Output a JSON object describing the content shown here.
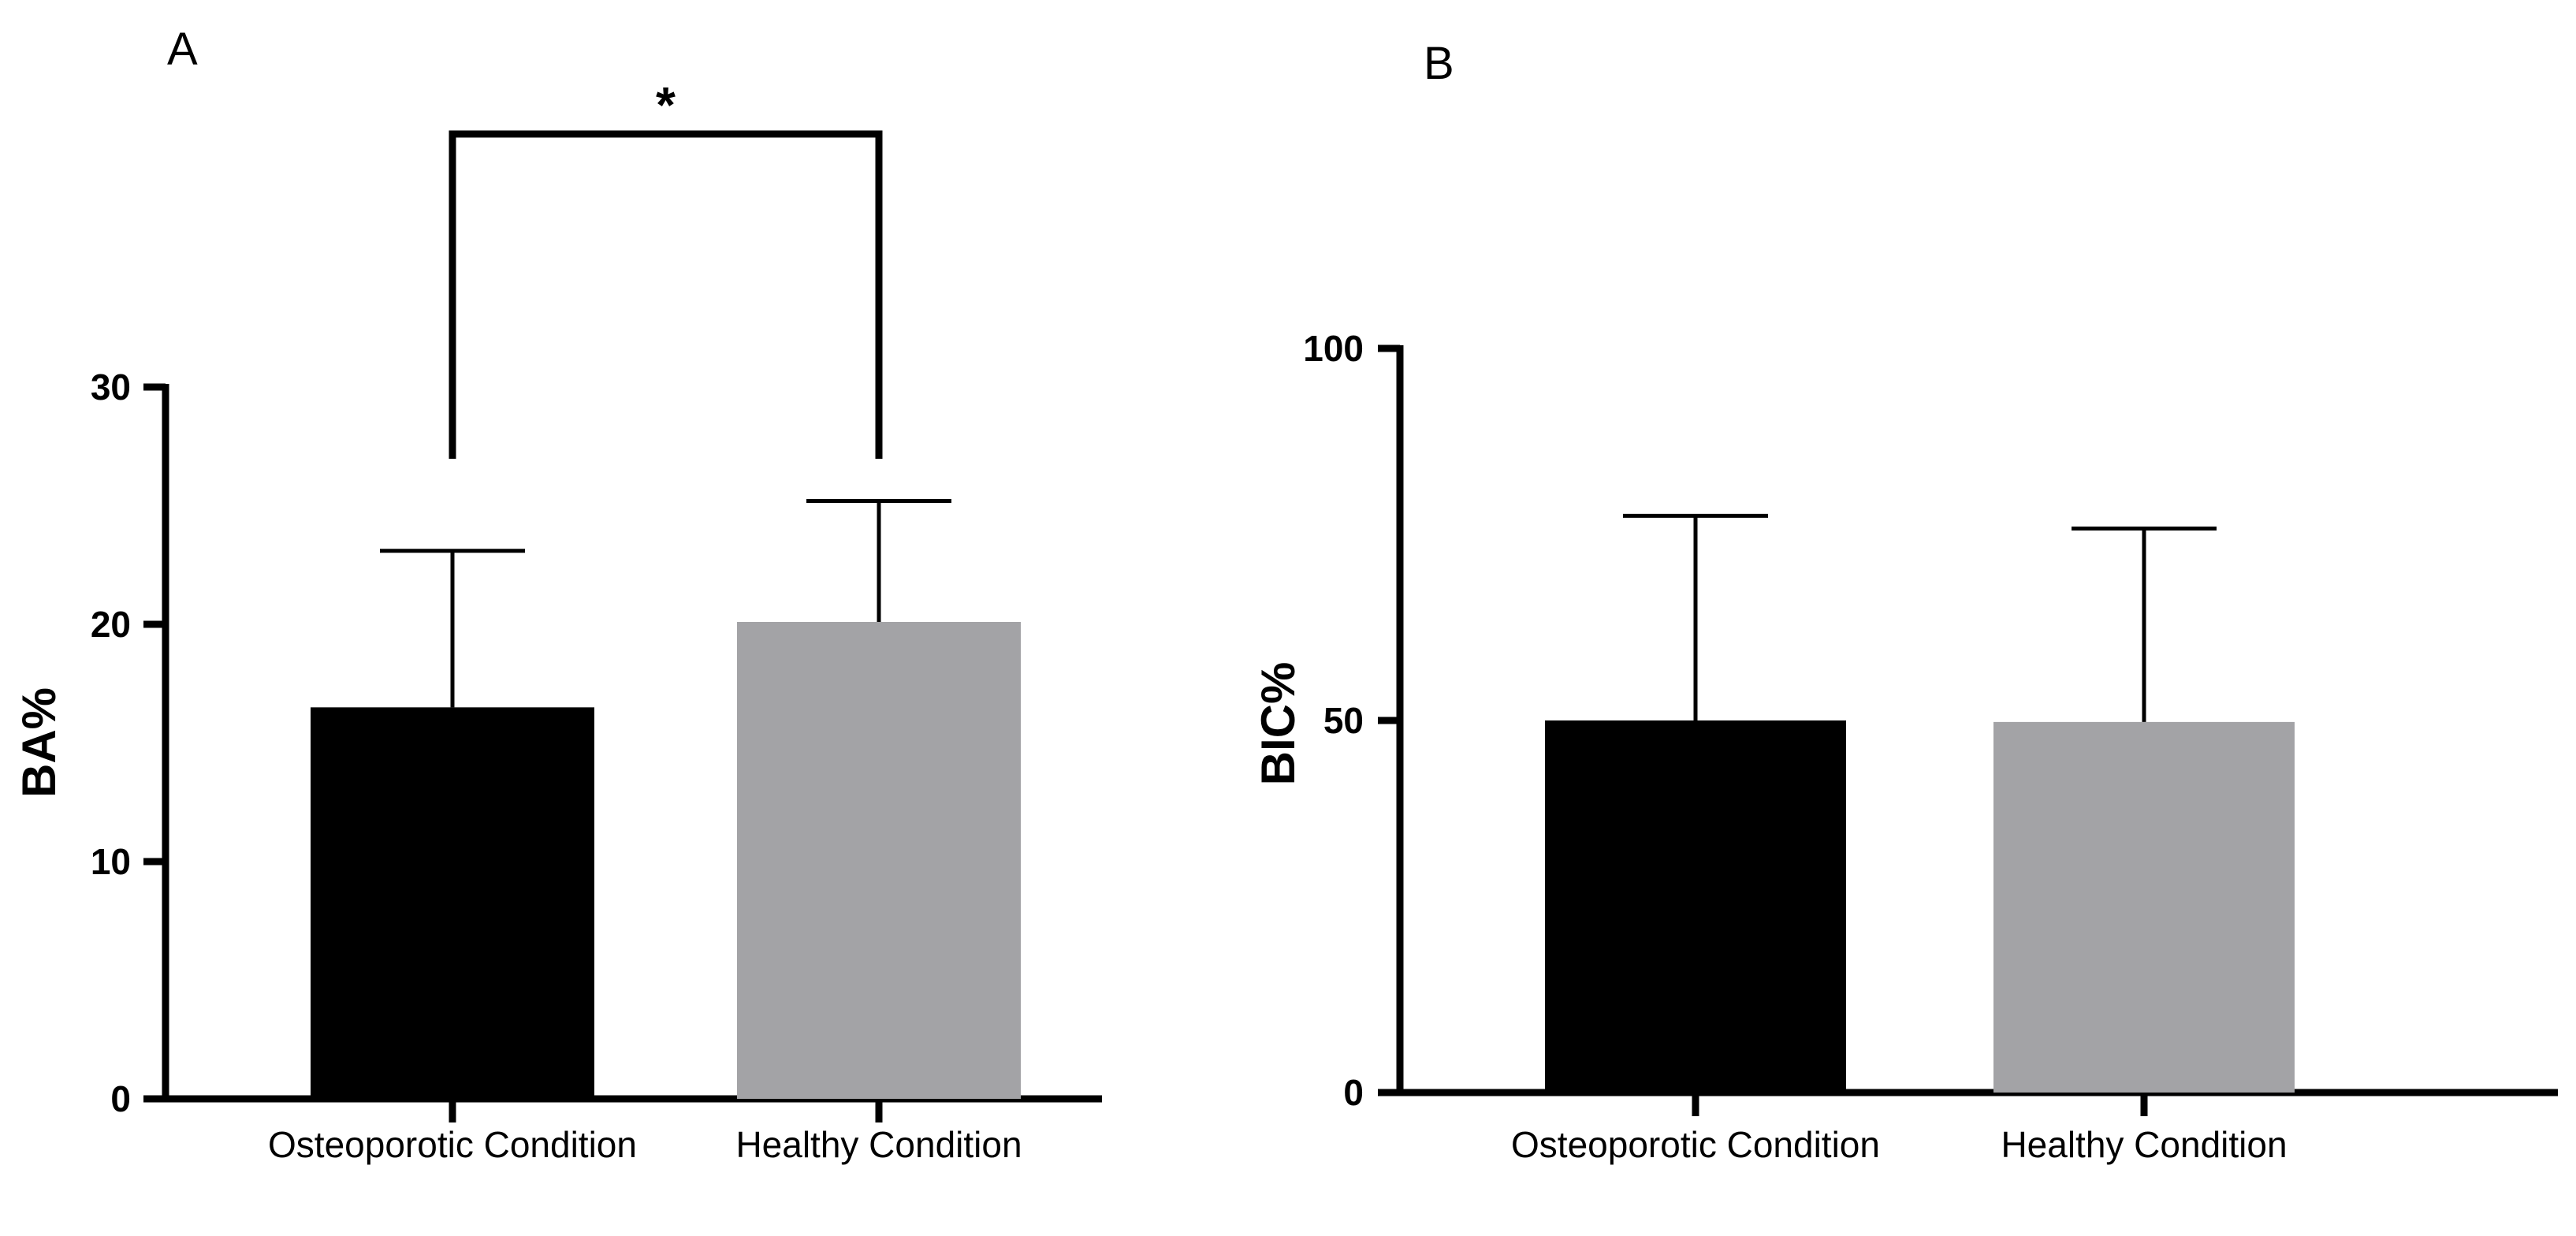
{
  "chart_data": [
    {
      "panel": "A",
      "type": "bar",
      "categories": [
        "Osteoporotic Condition",
        "Healthy Condition"
      ],
      "values": [
        16.5,
        20.1
      ],
      "error_upper": [
        23.1,
        25.2
      ],
      "colors": [
        "#000000",
        "#a3a3a6"
      ],
      "ylabel": "BA%",
      "ylim": [
        0,
        30
      ],
      "yticks": [
        0,
        10,
        20,
        30
      ],
      "yticklabels": [
        "0",
        "10",
        "20",
        "30"
      ],
      "significance": {
        "between": [
          0,
          1
        ],
        "label": "*"
      }
    },
    {
      "panel": "B",
      "type": "bar",
      "categories": [
        "Osteoporotic Condition",
        "Healthy Condition"
      ],
      "values": [
        50.0,
        49.8
      ],
      "error_upper": [
        77.5,
        75.8
      ],
      "colors": [
        "#000000",
        "#a3a3a6"
      ],
      "ylabel": "BIC%",
      "ylim": [
        0,
        100
      ],
      "yticks": [
        0,
        50,
        100
      ],
      "yticklabels": [
        "0",
        "50",
        "100"
      ]
    }
  ]
}
